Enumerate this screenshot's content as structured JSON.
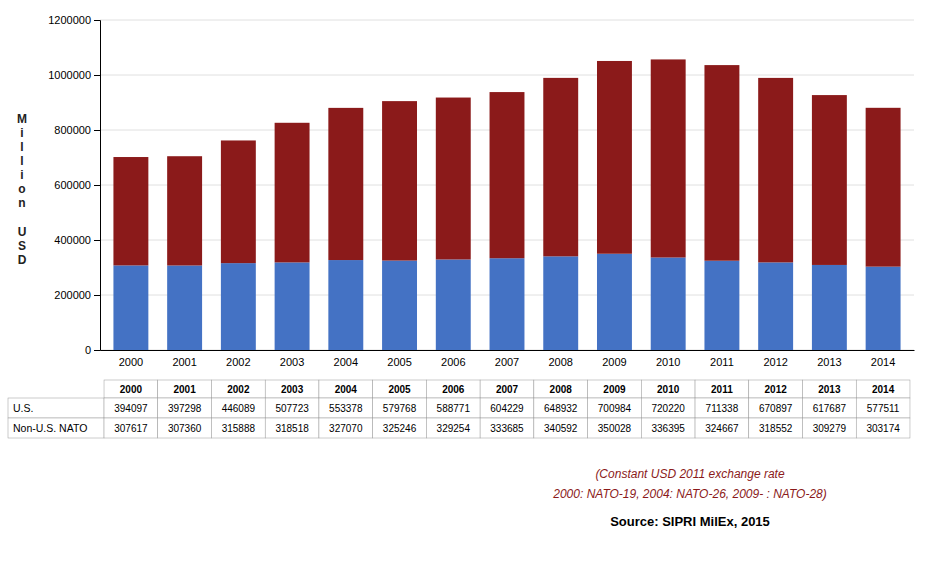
{
  "chart_data": {
    "type": "bar",
    "stacked": true,
    "grid": true,
    "ylabel": [
      "M\ni\nl\nl\ni\no\nn",
      "U\nS\nD"
    ],
    "categories": [
      "2000",
      "2001",
      "2002",
      "2003",
      "2004",
      "2005",
      "2006",
      "2007",
      "2008",
      "2009",
      "2010",
      "2011",
      "2012",
      "2013",
      "2014"
    ],
    "series": [
      {
        "name": "Non-U.S. NATO",
        "color": "#4472C4",
        "values": [
          307617,
          307360,
          315888,
          318518,
          327070,
          325246,
          329254,
          333685,
          340592,
          350028,
          336395,
          324667,
          318552,
          309279,
          303174
        ]
      },
      {
        "name": "U.S.",
        "color": "#8B1A1A",
        "values": [
          394097,
          397298,
          446089,
          507723,
          553378,
          579768,
          588771,
          604229,
          648932,
          700984,
          720220,
          711338,
          670897,
          617687,
          577511
        ]
      }
    ],
    "ylim": [
      0,
      1200000
    ],
    "yticks": [
      0,
      200000,
      400000,
      600000,
      800000,
      1000000,
      1200000
    ],
    "annotations": [
      "(Constant USD 2011 exchange rate",
      "2000: NATO-19, 2004: NATO-26, 2009- : NATO-28)",
      "Source: SIPRI MilEx, 2015"
    ]
  }
}
